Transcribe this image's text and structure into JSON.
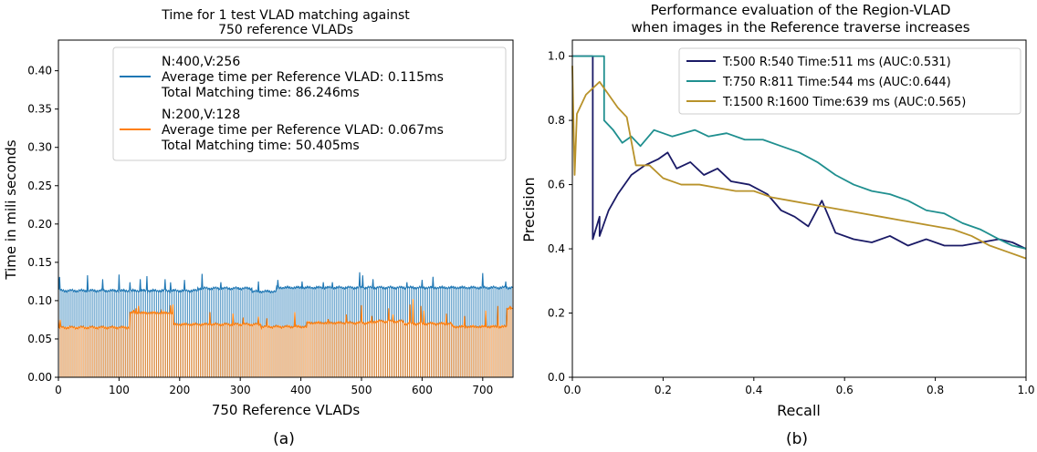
{
  "chart_data": [
    {
      "type": "bar",
      "title_lines": [
        "Time for 1 test VLAD matching against",
        "750 reference VLADs"
      ],
      "xlabel": "750 Reference VLADs",
      "ylabel": "Time in mili seconds",
      "xlim": [
        0,
        750
      ],
      "ylim": [
        0,
        0.44
      ],
      "xticks": [
        0,
        100,
        200,
        300,
        400,
        500,
        600,
        700
      ],
      "yticks": [
        "0.00",
        "0.05",
        "0.10",
        "0.15",
        "0.20",
        "0.25",
        "0.30",
        "0.35",
        "0.40"
      ],
      "caption": "(a)",
      "legend_position": "top-right",
      "series": [
        {
          "name": "N:400,V:256",
          "legend_lines": [
            "N:400,V:256",
            "Average time per Reference VLAD: 0.115ms",
            "Total Matching time: 86.246ms"
          ],
          "color": "#1f77b4",
          "n": 750,
          "base": 0.114,
          "first": 0.131,
          "segments": [
            [
              1,
              230,
              0.113
            ],
            [
              230,
              320,
              0.116
            ],
            [
              320,
              360,
              0.112
            ],
            [
              360,
              750,
              0.117
            ]
          ],
          "spikes": [
            [
              2,
              0.131
            ],
            [
              48,
              0.133
            ],
            [
              73,
              0.128
            ],
            [
              100,
              0.134
            ],
            [
              118,
              0.124
            ],
            [
              135,
              0.128
            ],
            [
              146,
              0.132
            ],
            [
              176,
              0.128
            ],
            [
              185,
              0.124
            ],
            [
              208,
              0.127
            ],
            [
              237,
              0.135
            ],
            [
              268,
              0.124
            ],
            [
              330,
              0.125
            ],
            [
              362,
              0.127
            ],
            [
              402,
              0.125
            ],
            [
              437,
              0.124
            ],
            [
              452,
              0.124
            ],
            [
              497,
              0.137
            ],
            [
              502,
              0.133
            ],
            [
              519,
              0.128
            ],
            [
              575,
              0.124
            ],
            [
              600,
              0.127
            ],
            [
              618,
              0.131
            ],
            [
              700,
              0.136
            ],
            [
              738,
              0.125
            ]
          ]
        },
        {
          "name": "N:200,V:128",
          "legend_lines": [
            "N:200,V:128",
            "Average time per Reference VLAD: 0.067ms",
            "Total Matching time: 50.405ms"
          ],
          "color": "#ff7f0e",
          "n": 750,
          "base": 0.066,
          "first": 0.075,
          "segments": [
            [
              1,
              118,
              0.065
            ],
            [
              118,
              190,
              0.084
            ],
            [
              190,
              335,
              0.069
            ],
            [
              335,
              410,
              0.066
            ],
            [
              410,
              520,
              0.071
            ],
            [
              520,
              570,
              0.073
            ],
            [
              570,
              650,
              0.07
            ],
            [
              650,
              740,
              0.066
            ],
            [
              740,
              750,
              0.09
            ]
          ],
          "spikes": [
            [
              3,
              0.075
            ],
            [
              124,
              0.088
            ],
            [
              128,
              0.09
            ],
            [
              132,
              0.093
            ],
            [
              170,
              0.087
            ],
            [
              185,
              0.094
            ],
            [
              189,
              0.095
            ],
            [
              250,
              0.085
            ],
            [
              288,
              0.083
            ],
            [
              305,
              0.078
            ],
            [
              330,
              0.079
            ],
            [
              344,
              0.077
            ],
            [
              390,
              0.085
            ],
            [
              445,
              0.076
            ],
            [
              475,
              0.082
            ],
            [
              500,
              0.094
            ],
            [
              517,
              0.08
            ],
            [
              545,
              0.09
            ],
            [
              552,
              0.082
            ],
            [
              580,
              0.095
            ],
            [
              585,
              0.102
            ],
            [
              598,
              0.093
            ],
            [
              603,
              0.087
            ],
            [
              640,
              0.083
            ],
            [
              670,
              0.08
            ],
            [
              705,
              0.087
            ],
            [
              725,
              0.093
            ],
            [
              745,
              0.093
            ]
          ]
        }
      ]
    },
    {
      "type": "line",
      "title_lines": [
        "Performance evaluation of the Region-VLAD",
        "when images in the Reference traverse increases"
      ],
      "xlabel": "Recall",
      "ylabel": "Precision",
      "xlim": [
        0,
        1.0
      ],
      "ylim": [
        0,
        1.05
      ],
      "xticks": [
        "0.0",
        "0.2",
        "0.4",
        "0.6",
        "0.8",
        "1.0"
      ],
      "yticks": [
        "0.0",
        "0.2",
        "0.4",
        "0.6",
        "0.8",
        "1.0"
      ],
      "caption": "(b)",
      "legend_position": "top-right",
      "series": [
        {
          "name": "T:500 R:540 Time:511 ms (AUC:0.531)",
          "color": "#1a1a66",
          "points": [
            [
              0.0,
              1.0
            ],
            [
              0.045,
              1.0
            ],
            [
              0.045,
              0.43
            ],
            [
              0.06,
              0.5
            ],
            [
              0.06,
              0.44
            ],
            [
              0.08,
              0.52
            ],
            [
              0.1,
              0.57
            ],
            [
              0.13,
              0.63
            ],
            [
              0.16,
              0.66
            ],
            [
              0.19,
              0.68
            ],
            [
              0.21,
              0.7
            ],
            [
              0.23,
              0.65
            ],
            [
              0.26,
              0.67
            ],
            [
              0.29,
              0.63
            ],
            [
              0.32,
              0.65
            ],
            [
              0.35,
              0.61
            ],
            [
              0.39,
              0.6
            ],
            [
              0.43,
              0.57
            ],
            [
              0.46,
              0.52
            ],
            [
              0.49,
              0.5
            ],
            [
              0.52,
              0.47
            ],
            [
              0.55,
              0.55
            ],
            [
              0.58,
              0.45
            ],
            [
              0.62,
              0.43
            ],
            [
              0.66,
              0.42
            ],
            [
              0.7,
              0.44
            ],
            [
              0.74,
              0.41
            ],
            [
              0.78,
              0.43
            ],
            [
              0.82,
              0.41
            ],
            [
              0.86,
              0.41
            ],
            [
              0.9,
              0.42
            ],
            [
              0.94,
              0.43
            ],
            [
              0.97,
              0.42
            ],
            [
              1.0,
              0.4
            ]
          ]
        },
        {
          "name": "T:750 R:811 Time:544 ms (AUC:0.644)",
          "color": "#1f8f8f",
          "points": [
            [
              0.0,
              1.0
            ],
            [
              0.07,
              1.0
            ],
            [
              0.07,
              0.8
            ],
            [
              0.09,
              0.77
            ],
            [
              0.11,
              0.73
            ],
            [
              0.13,
              0.75
            ],
            [
              0.15,
              0.72
            ],
            [
              0.18,
              0.77
            ],
            [
              0.22,
              0.75
            ],
            [
              0.27,
              0.77
            ],
            [
              0.3,
              0.75
            ],
            [
              0.34,
              0.76
            ],
            [
              0.38,
              0.74
            ],
            [
              0.42,
              0.74
            ],
            [
              0.46,
              0.72
            ],
            [
              0.5,
              0.7
            ],
            [
              0.54,
              0.67
            ],
            [
              0.58,
              0.63
            ],
            [
              0.62,
              0.6
            ],
            [
              0.66,
              0.58
            ],
            [
              0.7,
              0.57
            ],
            [
              0.74,
              0.55
            ],
            [
              0.78,
              0.52
            ],
            [
              0.82,
              0.51
            ],
            [
              0.86,
              0.48
            ],
            [
              0.9,
              0.46
            ],
            [
              0.94,
              0.43
            ],
            [
              0.97,
              0.41
            ],
            [
              1.0,
              0.4
            ]
          ]
        },
        {
          "name": "T:1500 R:1600 Time:639 ms (AUC:0.565)",
          "color": "#b8922a",
          "points": [
            [
              0.0,
              0.97
            ],
            [
              0.005,
              0.63
            ],
            [
              0.01,
              0.82
            ],
            [
              0.03,
              0.88
            ],
            [
              0.06,
              0.92
            ],
            [
              0.08,
              0.88
            ],
            [
              0.1,
              0.84
            ],
            [
              0.12,
              0.81
            ],
            [
              0.14,
              0.66
            ],
            [
              0.17,
              0.66
            ],
            [
              0.2,
              0.62
            ],
            [
              0.24,
              0.6
            ],
            [
              0.28,
              0.6
            ],
            [
              0.32,
              0.59
            ],
            [
              0.36,
              0.58
            ],
            [
              0.4,
              0.58
            ],
            [
              0.44,
              0.56
            ],
            [
              0.48,
              0.55
            ],
            [
              0.52,
              0.54
            ],
            [
              0.56,
              0.53
            ],
            [
              0.6,
              0.52
            ],
            [
              0.64,
              0.51
            ],
            [
              0.68,
              0.5
            ],
            [
              0.72,
              0.49
            ],
            [
              0.76,
              0.48
            ],
            [
              0.8,
              0.47
            ],
            [
              0.84,
              0.46
            ],
            [
              0.88,
              0.44
            ],
            [
              0.92,
              0.41
            ],
            [
              0.96,
              0.39
            ],
            [
              1.0,
              0.37
            ]
          ]
        }
      ]
    }
  ]
}
